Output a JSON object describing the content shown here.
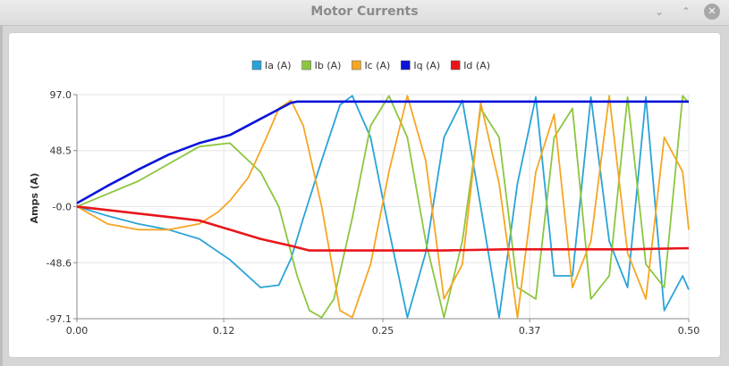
{
  "window": {
    "title": "Motor Currents",
    "minimize_glyph": "⌄",
    "maximize_glyph": "⌃",
    "close_glyph": "✕"
  },
  "chart_data": {
    "type": "line",
    "ylabel": "Amps (A)",
    "xlabel": "",
    "xlim": [
      0.0,
      0.5
    ],
    "ylim": [
      -97.1,
      97.0
    ],
    "x_ticks": [
      0.0,
      0.12,
      0.25,
      0.37,
      0.5
    ],
    "x_tick_labels": [
      "0.00",
      "0.12",
      "0.25",
      "0.37",
      "0.50"
    ],
    "y_ticks": [
      97.0,
      48.5,
      -0.0,
      -48.6,
      -97.1
    ],
    "y_tick_labels": [
      "97.0",
      "48.5",
      "-0.0",
      "-48.6",
      "-97.1"
    ],
    "grid": true,
    "legend": "top-center",
    "colors": {
      "Ia": "#2aa3d8",
      "Ib": "#8cc63f",
      "Ic": "#f5a623",
      "Iq": "#0a14d9",
      "Id": "#e8161b"
    },
    "series": [
      {
        "name": "Ia (A)",
        "x": [
          0,
          0.025,
          0.05,
          0.075,
          0.1,
          0.125,
          0.15,
          0.165,
          0.175,
          0.185,
          0.2,
          0.215,
          0.225,
          0.24,
          0.255,
          0.27,
          0.285,
          0.3,
          0.315,
          0.33,
          0.345,
          0.36,
          0.375,
          0.39,
          0.405,
          0.42,
          0.435,
          0.45,
          0.465,
          0.48,
          0.495,
          0.5
        ],
        "values": [
          0,
          -8,
          -15,
          -20,
          -28,
          -46,
          -70,
          -68,
          -45,
          -10,
          40,
          88,
          96,
          60,
          -20,
          -96,
          -40,
          60,
          92,
          0,
          -96,
          20,
          95,
          -60,
          -60,
          95,
          -30,
          -70,
          95,
          -90,
          -60,
          -72
        ]
      },
      {
        "name": "Ib (A)",
        "x": [
          0,
          0.05,
          0.1,
          0.125,
          0.15,
          0.165,
          0.18,
          0.19,
          0.2,
          0.21,
          0.225,
          0.24,
          0.255,
          0.27,
          0.285,
          0.3,
          0.315,
          0.33,
          0.345,
          0.36,
          0.375,
          0.39,
          0.405,
          0.42,
          0.435,
          0.45,
          0.465,
          0.48,
          0.495,
          0.5
        ],
        "values": [
          0,
          22,
          52,
          55,
          30,
          0,
          -60,
          -90,
          -96,
          -80,
          -10,
          70,
          96,
          60,
          -30,
          -96,
          -30,
          85,
          60,
          -70,
          -80,
          60,
          85,
          -80,
          -60,
          95,
          -50,
          -70,
          96,
          90
        ]
      },
      {
        "name": "Ic (A)",
        "x": [
          0,
          0.025,
          0.05,
          0.075,
          0.1,
          0.115,
          0.125,
          0.14,
          0.155,
          0.165,
          0.175,
          0.185,
          0.2,
          0.215,
          0.225,
          0.24,
          0.255,
          0.27,
          0.285,
          0.3,
          0.315,
          0.33,
          0.345,
          0.36,
          0.375,
          0.39,
          0.405,
          0.42,
          0.435,
          0.45,
          0.465,
          0.48,
          0.495,
          0.5
        ],
        "values": [
          0,
          -15,
          -20,
          -20,
          -15,
          -5,
          5,
          25,
          60,
          85,
          92,
          70,
          0,
          -90,
          -96,
          -50,
          30,
          96,
          40,
          -80,
          -50,
          90,
          20,
          -96,
          30,
          80,
          -70,
          -30,
          96,
          -40,
          -80,
          60,
          30,
          -20
        ]
      },
      {
        "name": "Iq (A)",
        "x": [
          0,
          0.025,
          0.05,
          0.075,
          0.1,
          0.125,
          0.15,
          0.175,
          0.18,
          0.25,
          0.3,
          0.35,
          0.4,
          0.45,
          0.5
        ],
        "values": [
          3,
          18,
          32,
          45,
          55,
          62,
          76,
          90,
          91,
          91,
          91,
          91,
          91,
          91,
          91
        ]
      },
      {
        "name": "Id (A)",
        "x": [
          0,
          0.025,
          0.05,
          0.075,
          0.1,
          0.125,
          0.15,
          0.175,
          0.19,
          0.25,
          0.3,
          0.35,
          0.4,
          0.45,
          0.5
        ],
        "values": [
          0,
          -3,
          -6,
          -9,
          -12,
          -20,
          -28,
          -34,
          -38,
          -38,
          -38,
          -37,
          -37,
          -37,
          -36
        ]
      }
    ]
  }
}
